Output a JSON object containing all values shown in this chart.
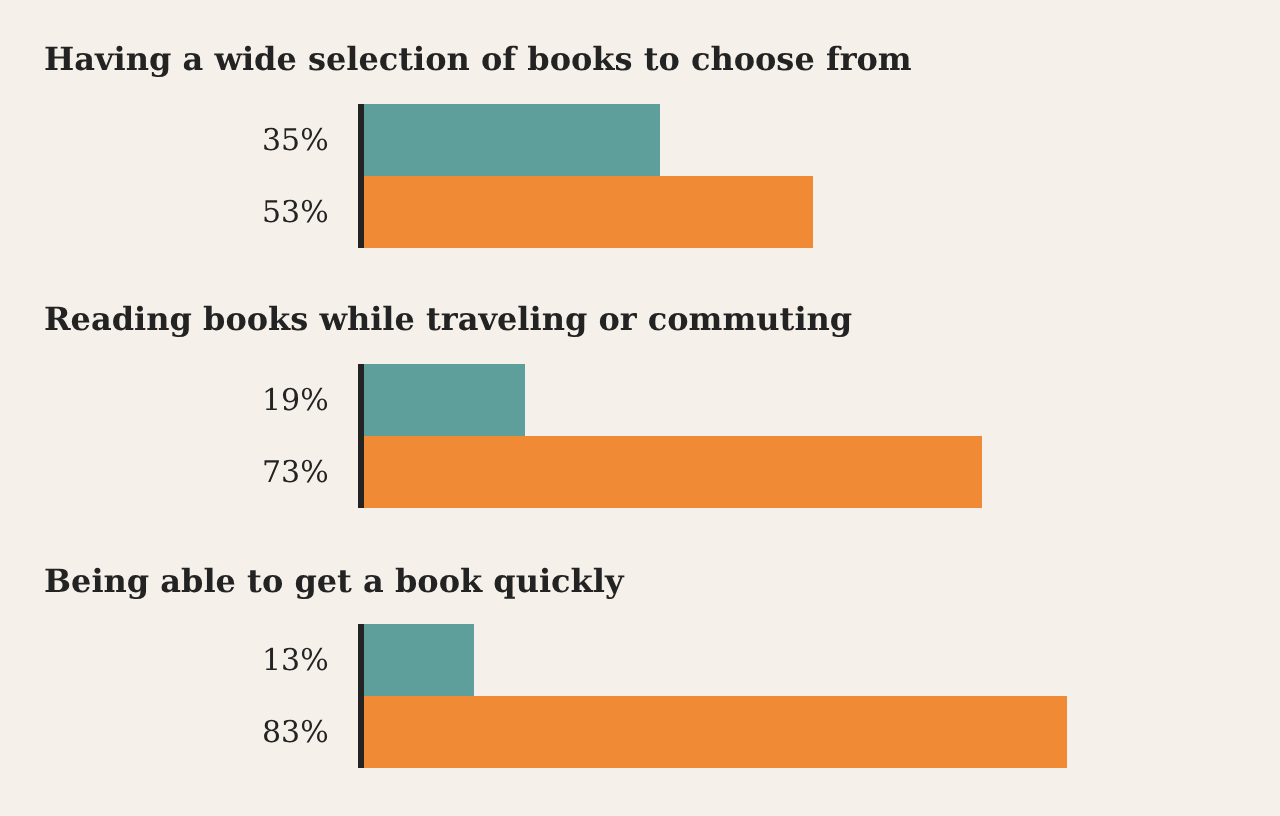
{
  "chart_data": [
    {
      "type": "bar",
      "orientation": "horizontal",
      "title": "Having a wide selection of books to choose from",
      "categories": [
        null,
        null
      ],
      "values": [
        35,
        53
      ],
      "colors": [
        "#5e9e9b",
        "#f08a35"
      ],
      "value_labels": [
        "35%",
        "53%"
      ]
    },
    {
      "type": "bar",
      "orientation": "horizontal",
      "title": "Reading books while traveling or commuting",
      "categories": [
        null,
        null
      ],
      "values": [
        19,
        73
      ],
      "colors": [
        "#5e9e9b",
        "#f08a35"
      ],
      "value_labels": [
        "19%",
        "73%"
      ]
    },
    {
      "type": "bar",
      "orientation": "horizontal",
      "title": "Being able to get a book quickly",
      "categories": [
        null,
        null
      ],
      "values": [
        13,
        83
      ],
      "colors": [
        "#5e9e9b",
        "#f08a35"
      ],
      "value_labels": [
        "13%",
        "83%"
      ]
    }
  ]
}
